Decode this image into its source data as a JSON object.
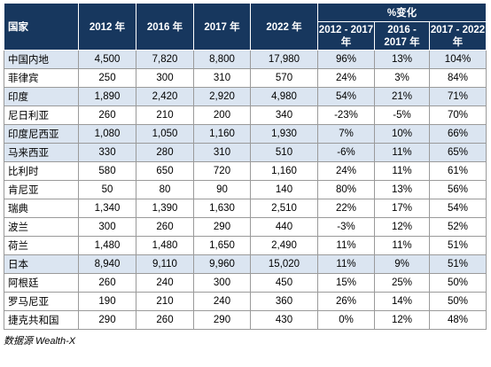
{
  "table": {
    "headers": {
      "country": "国家",
      "y2012": "2012 年",
      "y2016": "2016 年",
      "y2017": "2017 年",
      "y2022": "2022 年",
      "pct_group": "%变化",
      "pct_2012_2017": "2012 - 2017 年",
      "pct_2016_2017": "2016 - 2017 年",
      "pct_2017_2022": "2017 - 2022 年"
    },
    "rows": [
      {
        "country": "中国内地",
        "y2012": "4,500",
        "y2016": "7,820",
        "y2017": "8,800",
        "y2022": "17,980",
        "p1": "96%",
        "p2": "13%",
        "p3": "104%"
      },
      {
        "country": "菲律宾",
        "y2012": "250",
        "y2016": "300",
        "y2017": "310",
        "y2022": "570",
        "p1": "24%",
        "p2": "3%",
        "p3": "84%"
      },
      {
        "country": "印度",
        "y2012": "1,890",
        "y2016": "2,420",
        "y2017": "2,920",
        "y2022": "4,980",
        "p1": "54%",
        "p2": "21%",
        "p3": "71%"
      },
      {
        "country": "尼日利亚",
        "y2012": "260",
        "y2016": "210",
        "y2017": "200",
        "y2022": "340",
        "p1": "-23%",
        "p2": "-5%",
        "p3": "70%"
      },
      {
        "country": "印度尼西亚",
        "y2012": "1,080",
        "y2016": "1,050",
        "y2017": "1,160",
        "y2022": "1,930",
        "p1": "7%",
        "p2": "10%",
        "p3": "66%"
      },
      {
        "country": "马来西亚",
        "y2012": "330",
        "y2016": "280",
        "y2017": "310",
        "y2022": "510",
        "p1": "-6%",
        "p2": "11%",
        "p3": "65%"
      },
      {
        "country": "比利时",
        "y2012": "580",
        "y2016": "650",
        "y2017": "720",
        "y2022": "1,160",
        "p1": "24%",
        "p2": "11%",
        "p3": "61%"
      },
      {
        "country": "肯尼亚",
        "y2012": "50",
        "y2016": "80",
        "y2017": "90",
        "y2022": "140",
        "p1": "80%",
        "p2": "13%",
        "p3": "56%"
      },
      {
        "country": "瑞典",
        "y2012": "1,340",
        "y2016": "1,390",
        "y2017": "1,630",
        "y2022": "2,510",
        "p1": "22%",
        "p2": "17%",
        "p3": "54%"
      },
      {
        "country": "波兰",
        "y2012": "300",
        "y2016": "260",
        "y2017": "290",
        "y2022": "440",
        "p1": "-3%",
        "p2": "12%",
        "p3": "52%"
      },
      {
        "country": "荷兰",
        "y2012": "1,480",
        "y2016": "1,480",
        "y2017": "1,650",
        "y2022": "2,490",
        "p1": "11%",
        "p2": "11%",
        "p3": "51%"
      },
      {
        "country": "日本",
        "y2012": "8,940",
        "y2016": "9,110",
        "y2017": "9,960",
        "y2022": "15,020",
        "p1": "11%",
        "p2": "9%",
        "p3": "51%"
      },
      {
        "country": "阿根廷",
        "y2012": "260",
        "y2016": "240",
        "y2017": "300",
        "y2022": "450",
        "p1": "15%",
        "p2": "25%",
        "p3": "50%"
      },
      {
        "country": "罗马尼亚",
        "y2012": "190",
        "y2016": "210",
        "y2017": "240",
        "y2022": "360",
        "p1": "26%",
        "p2": "14%",
        "p3": "50%"
      },
      {
        "country": "捷克共和国",
        "y2012": "290",
        "y2016": "260",
        "y2017": "290",
        "y2022": "430",
        "p1": "0%",
        "p2": "12%",
        "p3": "48%"
      }
    ],
    "shaded_rows": [
      0,
      2,
      4,
      5,
      11
    ],
    "colors": {
      "header_bg": "#17375e",
      "header_text": "#ffffff",
      "shade_bg": "#dbe5f1",
      "border": "#9a9a9a"
    }
  },
  "source": "数据源 Wealth-X"
}
